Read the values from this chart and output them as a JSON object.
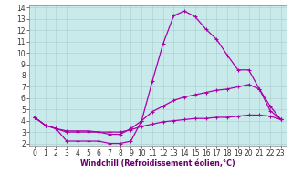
{
  "xlabel": "Windchill (Refroidissement éolien,°C)",
  "background_color": "#c8eaea",
  "axes_facecolor": "#c8eaea",
  "fig_facecolor": "#ffffff",
  "line_color": "#aa00aa",
  "grid_color": "#aacccc",
  "xlim": [
    -0.5,
    23.5
  ],
  "ylim": [
    1.8,
    14.2
  ],
  "xticks": [
    0,
    1,
    2,
    3,
    4,
    5,
    6,
    7,
    8,
    9,
    10,
    11,
    12,
    13,
    14,
    15,
    16,
    17,
    18,
    19,
    20,
    21,
    22,
    23
  ],
  "yticks": [
    2,
    3,
    4,
    5,
    6,
    7,
    8,
    9,
    10,
    11,
    12,
    13,
    14
  ],
  "curve1_x": [
    0,
    1,
    2,
    3,
    4,
    5,
    6,
    7,
    8,
    9,
    10,
    11,
    12,
    13,
    14,
    15,
    16,
    17,
    18,
    19,
    20,
    21,
    22,
    23
  ],
  "curve1_y": [
    4.3,
    3.6,
    3.3,
    2.2,
    2.2,
    2.2,
    2.2,
    2.0,
    2.0,
    2.2,
    4.0,
    7.5,
    10.8,
    13.3,
    13.7,
    13.2,
    12.1,
    11.2,
    9.8,
    8.5,
    8.5,
    6.8,
    4.9,
    4.1
  ],
  "curve2_x": [
    0,
    1,
    2,
    3,
    4,
    5,
    6,
    7,
    8,
    9,
    10,
    11,
    12,
    13,
    14,
    15,
    16,
    17,
    18,
    19,
    20,
    21,
    22,
    23
  ],
  "curve2_y": [
    4.3,
    3.6,
    3.3,
    3.0,
    3.0,
    3.0,
    3.0,
    2.8,
    2.8,
    3.3,
    4.0,
    4.8,
    5.3,
    5.8,
    6.1,
    6.3,
    6.5,
    6.7,
    6.8,
    7.0,
    7.2,
    6.8,
    5.3,
    4.1
  ],
  "curve3_x": [
    0,
    1,
    2,
    3,
    4,
    5,
    6,
    7,
    8,
    9,
    10,
    11,
    12,
    13,
    14,
    15,
    16,
    17,
    18,
    19,
    20,
    21,
    22,
    23
  ],
  "curve3_y": [
    4.3,
    3.6,
    3.3,
    3.1,
    3.1,
    3.1,
    3.0,
    3.0,
    3.0,
    3.2,
    3.5,
    3.7,
    3.9,
    4.0,
    4.1,
    4.2,
    4.2,
    4.3,
    4.3,
    4.4,
    4.5,
    4.5,
    4.4,
    4.1
  ],
  "xlabel_color": "#660066",
  "xlabel_fontsize": 5.8,
  "tick_fontsize": 5.5,
  "spine_color": "#888888"
}
